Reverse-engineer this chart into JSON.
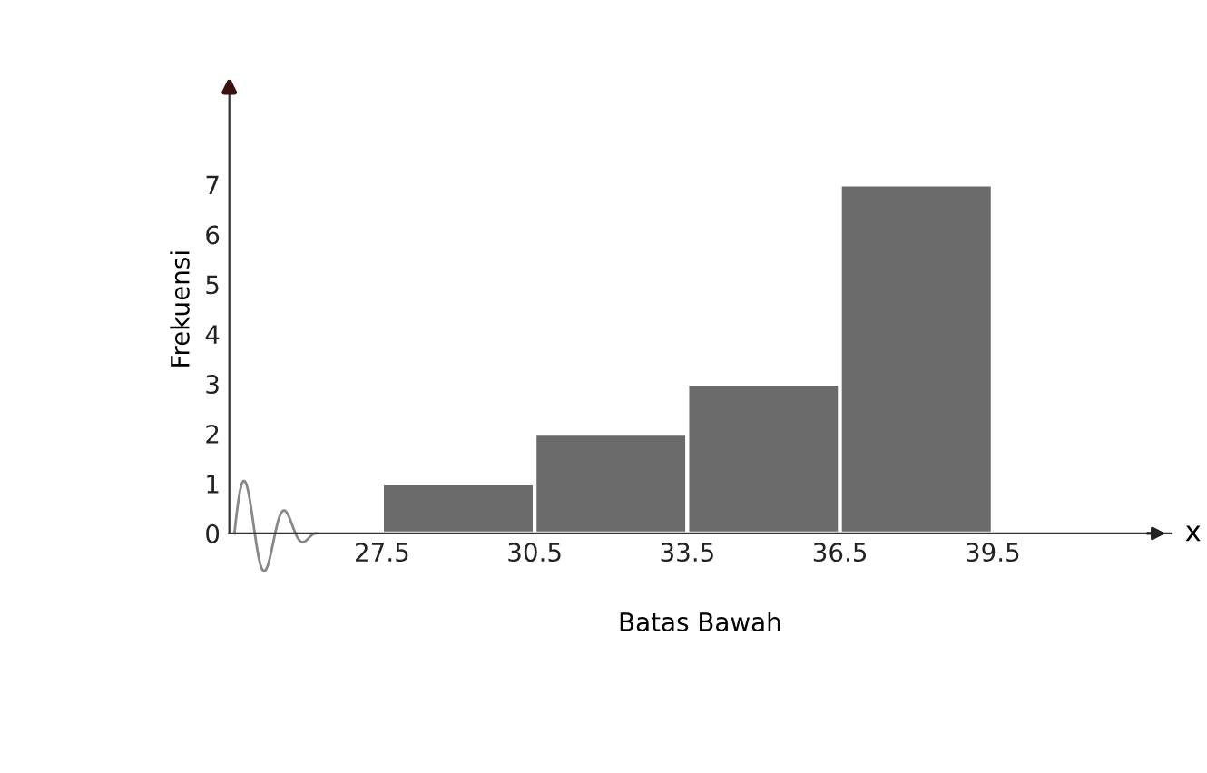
{
  "chart_data": {
    "type": "histogram",
    "xlabel": "Batas Bawah",
    "ylabel": "Frekuensi",
    "bins": [
      27.5,
      30.5,
      33.5,
      36.5,
      39.5
    ],
    "values": [
      1,
      2,
      3,
      7
    ],
    "color": "#6b6b6b",
    "xlim": [
      24.5,
      43
    ],
    "ylim": [
      0,
      9
    ],
    "xticks": [
      27.5,
      30.5,
      33.5,
      36.5,
      39.5
    ],
    "yticks": [
      0,
      1,
      2,
      3,
      4,
      5,
      6,
      7
    ],
    "annotations": [
      "x"
    ],
    "grid": false,
    "legend": false
  }
}
